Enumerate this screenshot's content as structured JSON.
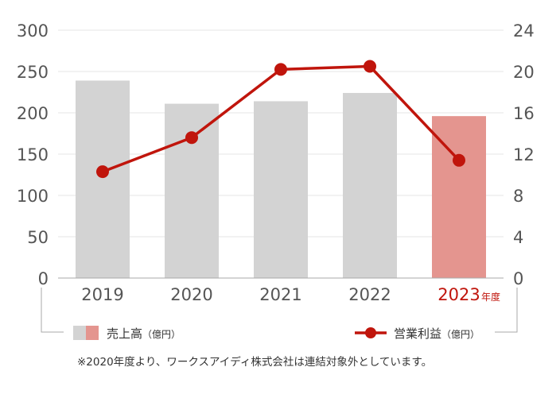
{
  "chart_data": {
    "type": "bar",
    "categories": [
      "2019",
      "2020",
      "2021",
      "2022",
      "2023"
    ],
    "category_suffix": "年度",
    "highlight_index": 4,
    "series": [
      {
        "name": "売上高",
        "unit": "（億円）",
        "type": "bar",
        "axis": "left",
        "values": [
          239,
          211,
          214,
          224,
          196
        ]
      },
      {
        "name": "営業利益",
        "unit": "（億円）",
        "type": "line",
        "axis": "right",
        "values": [
          10.3,
          13.6,
          20.2,
          20.5,
          11.4
        ]
      }
    ],
    "ylim_left": [
      0,
      300
    ],
    "yticks_left": [
      0,
      50,
      100,
      150,
      200,
      250,
      300
    ],
    "ylim_right": [
      0,
      24
    ],
    "yticks_right": [
      0,
      4,
      8,
      12,
      16,
      20,
      24
    ],
    "grid": true,
    "legend_position": "bottom"
  },
  "colors": {
    "bar": "#d3d3d3",
    "bar_highlight": "#e4958f",
    "line": "#c0150c",
    "grid": "#e6e6e6",
    "axis": "#aaaaaa"
  },
  "footnote": "※2020年度より、ワークスアイディ株式会社は連結対象外としています。"
}
